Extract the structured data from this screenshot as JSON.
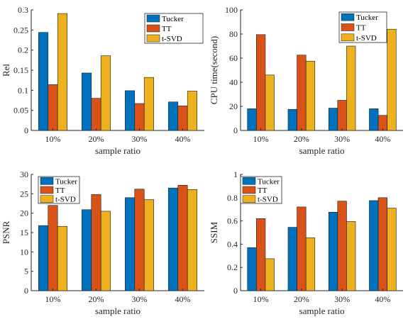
{
  "colors": {
    "Tucker": "#0072BD",
    "TT": "#D95319",
    "t-SVD": "#EDB120"
  },
  "chart_data": [
    {
      "type": "bar",
      "categories": [
        "10%",
        "20%",
        "30%",
        "40%"
      ],
      "xlabel": "sample ratio",
      "ylabel": "Rel",
      "ylim": [
        0,
        0.3
      ],
      "yticks": [
        0,
        0.05,
        0.1,
        0.15,
        0.2,
        0.25,
        0.3
      ],
      "ytick_labels": [
        "0",
        "0.05",
        "0.1",
        "0.15",
        "0.2",
        "0.25",
        "0.3"
      ],
      "legend": "top-right",
      "series": [
        {
          "name": "Tucker",
          "values": [
            0.244,
            0.143,
            0.099,
            0.071
          ]
        },
        {
          "name": "TT",
          "values": [
            0.114,
            0.08,
            0.067,
            0.061
          ]
        },
        {
          "name": "t-SVD",
          "values": [
            0.291,
            0.186,
            0.132,
            0.098
          ]
        }
      ]
    },
    {
      "type": "bar",
      "categories": [
        "10%",
        "20%",
        "30%",
        "40%"
      ],
      "xlabel": "sample ratio",
      "ylabel": "CPU time(second)",
      "ylim": [
        0,
        100
      ],
      "yticks": [
        0,
        20,
        40,
        60,
        80,
        100
      ],
      "ytick_labels": [
        "0",
        "20",
        "40",
        "60",
        "80",
        "100"
      ],
      "legend": "top-left",
      "series": [
        {
          "name": "Tucker",
          "values": [
            18,
            17.5,
            18.5,
            18
          ]
        },
        {
          "name": "TT",
          "values": [
            79.5,
            62.5,
            25,
            12.5
          ]
        },
        {
          "name": "t-SVD",
          "values": [
            46,
            57.5,
            70,
            84
          ]
        }
      ]
    },
    {
      "type": "bar",
      "categories": [
        "10%",
        "20%",
        "30%",
        "40%"
      ],
      "xlabel": "sample ratio",
      "ylabel": "PSNR",
      "ylim": [
        0,
        30
      ],
      "yticks": [
        0,
        5,
        10,
        15,
        20,
        25,
        30
      ],
      "ytick_labels": [
        "0",
        "5",
        "10",
        "15",
        "20",
        "25",
        "30"
      ],
      "legend": "top-left",
      "series": [
        {
          "name": "Tucker",
          "values": [
            16.8,
            20.9,
            24.0,
            26.5
          ]
        },
        {
          "name": "TT",
          "values": [
            22.0,
            24.8,
            26.2,
            27.2
          ]
        },
        {
          "name": "t-SVD",
          "values": [
            16.6,
            20.5,
            23.5,
            26.1
          ]
        }
      ]
    },
    {
      "type": "bar",
      "categories": [
        "10%",
        "20%",
        "30%",
        "40%"
      ],
      "xlabel": "sample ratio",
      "ylabel": "SSIM",
      "ylim": [
        0,
        1
      ],
      "yticks": [
        0,
        0.2,
        0.4,
        0.6,
        0.8,
        1
      ],
      "ytick_labels": [
        "0",
        "0.2",
        "0.4",
        "0.6",
        "0.8",
        "1"
      ],
      "legend": "top-left",
      "series": [
        {
          "name": "Tucker",
          "values": [
            0.37,
            0.545,
            0.675,
            0.775
          ]
        },
        {
          "name": "TT",
          "values": [
            0.62,
            0.72,
            0.77,
            0.8
          ]
        },
        {
          "name": "t-SVD",
          "values": [
            0.275,
            0.455,
            0.595,
            0.71
          ]
        }
      ]
    }
  ]
}
